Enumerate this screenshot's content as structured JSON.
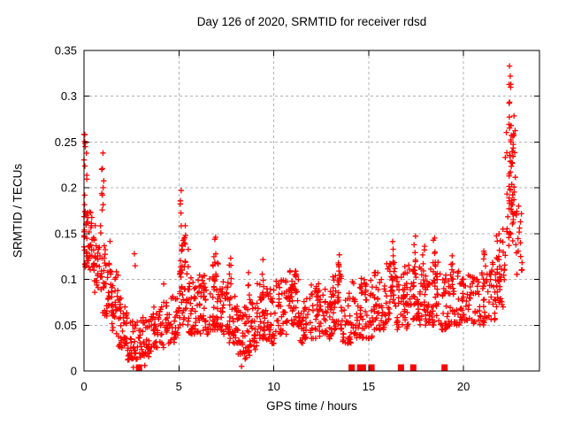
{
  "chart_data": {
    "type": "scatter",
    "title": "Day 126 of 2020, SRMTID for receiver rdsd",
    "xlabel": "GPS time / hours",
    "ylabel": "SRMTID / TECUs",
    "xlim": [
      0,
      24
    ],
    "ylim": [
      0,
      0.35
    ],
    "xticks": [
      {
        "v": 0,
        "label": "0"
      },
      {
        "v": 5,
        "label": "5"
      },
      {
        "v": 10,
        "label": "10"
      },
      {
        "v": 15,
        "label": "15"
      },
      {
        "v": 20,
        "label": "20"
      }
    ],
    "yticks": [
      {
        "v": 0,
        "label": "0"
      },
      {
        "v": 0.05,
        "label": "0.05"
      },
      {
        "v": 0.1,
        "label": "0.1"
      },
      {
        "v": 0.15,
        "label": "0.15"
      },
      {
        "v": 0.2,
        "label": "0.2"
      },
      {
        "v": 0.25,
        "label": "0.25"
      },
      {
        "v": 0.3,
        "label": "0.3"
      },
      {
        "v": 0.35,
        "label": "0.35"
      }
    ],
    "grid": true,
    "legend": "none",
    "marker": "plus",
    "marker_color": "#ff0000",
    "marker_size_px": 7,
    "grid_color": "#b0b0b0",
    "frame_color": "#000000",
    "text_color": "#000000",
    "background": "#ffffff",
    "encoding_note": "Dense scatter (~1700 pts) summarized: bands=[x_start,x_end,y_min,y_max,n_points,low_bias_exp]; spikes=[x,y_min,y_max,n_points] vertical bursts; outlier_points=[x,y]; zero_marker_hours = red filled squares drawn on the y=0 axis line.",
    "bands": [
      [
        0.0,
        0.15,
        0.13,
        0.24,
        14,
        1.0
      ],
      [
        0.1,
        0.5,
        0.11,
        0.185,
        34,
        1.1
      ],
      [
        0.5,
        0.95,
        0.085,
        0.16,
        36,
        1.2
      ],
      [
        0.95,
        1.4,
        0.06,
        0.145,
        34,
        1.3
      ],
      [
        1.4,
        1.8,
        0.04,
        0.11,
        34,
        1.4
      ],
      [
        1.8,
        2.3,
        0.025,
        0.08,
        40,
        1.4
      ],
      [
        2.3,
        2.95,
        0.012,
        0.055,
        44,
        1.3
      ],
      [
        2.95,
        3.6,
        0.015,
        0.06,
        40,
        1.3
      ],
      [
        3.6,
        4.2,
        0.025,
        0.07,
        38,
        1.4
      ],
      [
        4.2,
        5.0,
        0.03,
        0.085,
        44,
        1.4
      ],
      [
        5.0,
        5.5,
        0.05,
        0.15,
        40,
        1.5
      ],
      [
        5.5,
        6.0,
        0.04,
        0.105,
        36,
        1.5
      ],
      [
        6.0,
        6.6,
        0.04,
        0.11,
        38,
        1.5
      ],
      [
        6.6,
        7.1,
        0.045,
        0.12,
        38,
        1.5
      ],
      [
        7.1,
        7.6,
        0.04,
        0.1,
        36,
        1.5
      ],
      [
        7.6,
        8.1,
        0.03,
        0.09,
        34,
        1.5
      ],
      [
        8.1,
        8.6,
        0.012,
        0.07,
        36,
        1.3
      ],
      [
        8.6,
        9.1,
        0.015,
        0.08,
        34,
        1.4
      ],
      [
        9.1,
        9.6,
        0.035,
        0.1,
        36,
        1.5
      ],
      [
        9.6,
        10.1,
        0.03,
        0.09,
        34,
        1.5
      ],
      [
        10.1,
        10.7,
        0.04,
        0.1,
        38,
        1.5
      ],
      [
        10.7,
        11.3,
        0.05,
        0.11,
        38,
        1.5
      ],
      [
        11.3,
        11.9,
        0.03,
        0.085,
        36,
        1.5
      ],
      [
        11.9,
        12.5,
        0.035,
        0.095,
        36,
        1.5
      ],
      [
        12.5,
        13.1,
        0.035,
        0.09,
        36,
        1.5
      ],
      [
        13.1,
        13.6,
        0.045,
        0.11,
        36,
        1.5
      ],
      [
        13.6,
        14.1,
        0.03,
        0.085,
        32,
        1.5
      ],
      [
        14.1,
        14.8,
        0.035,
        0.1,
        36,
        1.5
      ],
      [
        14.8,
        15.3,
        0.035,
        0.1,
        32,
        1.5
      ],
      [
        15.3,
        15.9,
        0.045,
        0.11,
        36,
        1.5
      ],
      [
        15.9,
        16.5,
        0.05,
        0.12,
        38,
        1.5
      ],
      [
        16.5,
        17.1,
        0.045,
        0.11,
        36,
        1.5
      ],
      [
        17.1,
        17.7,
        0.055,
        0.125,
        38,
        1.5
      ],
      [
        17.7,
        18.2,
        0.05,
        0.115,
        34,
        1.5
      ],
      [
        18.2,
        18.8,
        0.05,
        0.12,
        36,
        1.5
      ],
      [
        18.8,
        19.3,
        0.045,
        0.105,
        32,
        1.5
      ],
      [
        19.3,
        19.9,
        0.05,
        0.11,
        34,
        1.5
      ],
      [
        19.9,
        20.5,
        0.055,
        0.105,
        34,
        1.4
      ],
      [
        20.5,
        21.1,
        0.05,
        0.11,
        34,
        1.4
      ],
      [
        21.1,
        21.7,
        0.055,
        0.12,
        34,
        1.4
      ],
      [
        21.7,
        22.2,
        0.07,
        0.155,
        34,
        1.2
      ],
      [
        22.2,
        22.75,
        0.13,
        0.28,
        42,
        0.9
      ],
      [
        22.75,
        23.1,
        0.1,
        0.2,
        16,
        1.2
      ]
    ],
    "spikes": [
      [
        0.05,
        0.1,
        0.26,
        12
      ],
      [
        0.98,
        0.17,
        0.241,
        9
      ],
      [
        5.12,
        0.1,
        0.197,
        10
      ],
      [
        5.3,
        0.11,
        0.165,
        7
      ],
      [
        6.35,
        0.08,
        0.122,
        6
      ],
      [
        6.9,
        0.09,
        0.148,
        8
      ],
      [
        7.7,
        0.08,
        0.13,
        6
      ],
      [
        8.65,
        0.05,
        0.122,
        6
      ],
      [
        9.4,
        0.06,
        0.125,
        7
      ],
      [
        10.9,
        0.07,
        0.115,
        6
      ],
      [
        11.15,
        0.07,
        0.11,
        5
      ],
      [
        12.35,
        0.06,
        0.1,
        5
      ],
      [
        13.4,
        0.07,
        0.132,
        8
      ],
      [
        14.6,
        0.06,
        0.128,
        7
      ],
      [
        15.35,
        0.06,
        0.12,
        6
      ],
      [
        16.3,
        0.07,
        0.145,
        8
      ],
      [
        16.85,
        0.06,
        0.12,
        6
      ],
      [
        17.45,
        0.07,
        0.15,
        8
      ],
      [
        17.9,
        0.07,
        0.138,
        7
      ],
      [
        18.45,
        0.07,
        0.148,
        8
      ],
      [
        19.4,
        0.07,
        0.13,
        7
      ],
      [
        21.1,
        0.07,
        0.14,
        7
      ],
      [
        21.85,
        0.08,
        0.15,
        7
      ],
      [
        22.45,
        0.18,
        0.333,
        16
      ],
      [
        22.6,
        0.15,
        0.3,
        12
      ]
    ],
    "outlier_points": [
      [
        0.04,
        0.258
      ],
      [
        0.07,
        0.245
      ],
      [
        1.0,
        0.238
      ],
      [
        2.65,
        0.128
      ],
      [
        2.7,
        0.115
      ],
      [
        4.2,
        0.095
      ],
      [
        5.12,
        0.197
      ],
      [
        22.42,
        0.333
      ],
      [
        22.46,
        0.322
      ],
      [
        8.3,
        0.005
      ],
      [
        2.6,
        0.004
      ],
      [
        3.2,
        0.006
      ],
      [
        22.9,
        0.18
      ],
      [
        23.0,
        0.14
      ],
      [
        23.05,
        0.11
      ]
    ],
    "zero_marker_hours": [
      2.9,
      14.1,
      14.55,
      14.7,
      15.15,
      16.7,
      17.35,
      19.0
    ]
  }
}
